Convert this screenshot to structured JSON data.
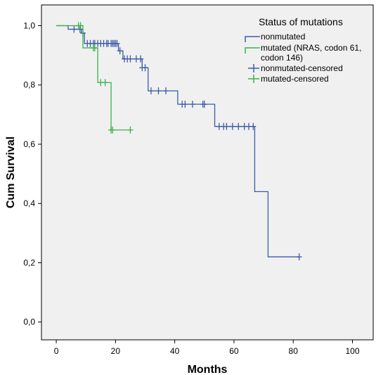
{
  "chart_data": {
    "type": "line",
    "subtype": "kaplan-meier",
    "xlabel": "Months",
    "ylabel": "Cum Survival",
    "xlim": [
      -5,
      107
    ],
    "ylim": [
      -0.06,
      1.07
    ],
    "xticks": [
      0,
      20,
      40,
      60,
      80,
      100
    ],
    "yticks": [
      0.0,
      0.2,
      0.4,
      0.6,
      0.8,
      1.0
    ],
    "xtick_labels": [
      "0",
      "20",
      "40",
      "60",
      "80",
      "100"
    ],
    "ytick_labels": [
      "0,0",
      "0,2",
      "0,4",
      "0,6",
      "0,8",
      "1,0"
    ],
    "grid": false,
    "legend": {
      "title": "Status of mutations",
      "placement": "top-right",
      "entries": [
        {
          "label_lines": [
            "nonmutated"
          ],
          "color": "#3d5ba9",
          "marker": "step"
        },
        {
          "label_lines": [
            "mutated (NRAS, codon 61,",
            "codon 146)"
          ],
          "color": "#38b44a",
          "marker": "step"
        },
        {
          "label_lines": [
            "nonmutated-censored"
          ],
          "color": "#3d5ba9",
          "marker": "plus"
        },
        {
          "label_lines": [
            "mutated-censored"
          ],
          "color": "#38b44a",
          "marker": "plus"
        }
      ]
    },
    "series": [
      {
        "name": "nonmutated",
        "color": "#3d5ba9",
        "steps": [
          [
            0,
            1.0
          ],
          [
            4,
            0.988
          ],
          [
            8.5,
            0.975
          ],
          [
            9.5,
            0.94
          ],
          [
            21,
            0.915
          ],
          [
            22.5,
            0.888
          ],
          [
            29,
            0.858
          ],
          [
            31,
            0.78
          ],
          [
            41,
            0.735
          ],
          [
            53.5,
            0.66
          ],
          [
            67,
            0.44
          ],
          [
            71.5,
            0.22
          ],
          [
            82,
            0.22
          ]
        ],
        "censored": [
          6,
          8,
          9,
          10.5,
          11.5,
          12.5,
          13,
          14,
          15,
          16,
          17,
          17.5,
          18.5,
          19,
          19.5,
          20,
          20.5,
          21.5,
          23,
          24,
          25,
          27,
          28.5,
          29,
          30,
          32,
          34.5,
          37,
          42.5,
          43.5,
          46,
          49.5,
          50,
          55,
          56.5,
          57.5,
          59.5,
          61.5,
          63.5,
          65,
          66.5,
          82
        ]
      },
      {
        "name": "mutated (NRAS, codon 61, codon 146)",
        "color": "#38b44a",
        "steps": [
          [
            0,
            1.0
          ],
          [
            9,
            0.925
          ],
          [
            14,
            0.808
          ],
          [
            18.5,
            0.648
          ],
          [
            25,
            0.648
          ]
        ],
        "censored": [
          7.5,
          8.2,
          12.5,
          13,
          15,
          16.5,
          18.5,
          19,
          25
        ]
      }
    ]
  }
}
